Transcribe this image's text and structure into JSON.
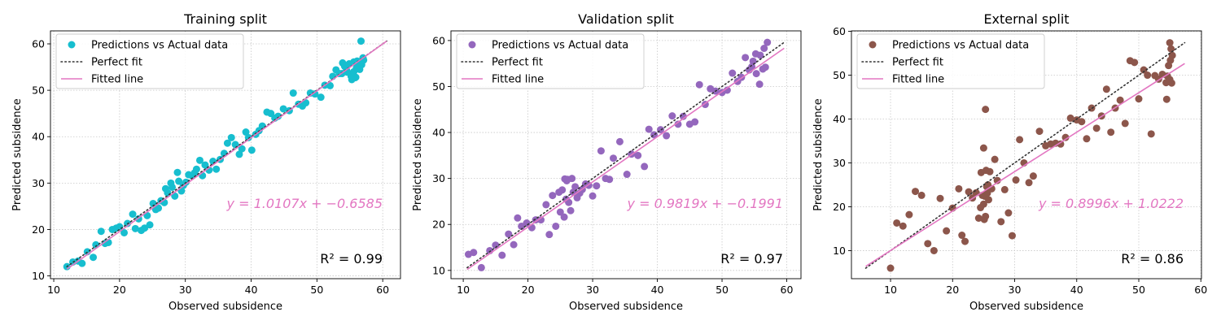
{
  "chart_data": [
    {
      "type": "scatter",
      "title": "Training split",
      "xlabel": "Observed subsidence",
      "ylabel": "Predicted subsidence",
      "xlim": [
        9.5,
        62.7
      ],
      "ylim": [
        9.4,
        62.8
      ],
      "xticks": [
        10,
        20,
        30,
        40,
        50,
        60
      ],
      "yticks": [
        10,
        20,
        30,
        40,
        50,
        60
      ],
      "grid": true,
      "legend_position": "top-left",
      "legend": [
        "Predictions vs Actual data",
        "Perfect fit",
        "Fitted line"
      ],
      "colors": {
        "points": "#17becf",
        "fit": "#e377c2",
        "perfect": "#333333"
      },
      "equation": "y = 1.0107x + −0.6585",
      "fit": {
        "slope": 1.0107,
        "intercept": -0.6585
      },
      "r2_label": "R² = 0.99",
      "r2": 0.99,
      "x": [
        12.0,
        12.9,
        13.7,
        14.3,
        15.1,
        16.0,
        16.4,
        17.2,
        17.8,
        18.3,
        18.9,
        19.5,
        20.0,
        20.7,
        21.2,
        22.0,
        22.4,
        22.9,
        23.3,
        23.8,
        24.2,
        24.6,
        25.1,
        25.5,
        25.9,
        26.3,
        26.8,
        27.0,
        27.3,
        27.8,
        28.0,
        28.4,
        28.8,
        29.0,
        29.4,
        29.7,
        30.1,
        30.5,
        31.0,
        31.4,
        31.7,
        32.2,
        32.6,
        33.0,
        33.6,
        34.2,
        34.7,
        35.3,
        35.9,
        36.4,
        37.0,
        37.6,
        38.2,
        38.6,
        39.2,
        39.6,
        40.1,
        40.7,
        41.2,
        41.7,
        42.4,
        43.0,
        43.6,
        44.1,
        44.9,
        45.8,
        46.4,
        47.2,
        47.8,
        48.3,
        49.0,
        49.7,
        50.6,
        51.2,
        52.0,
        52.4,
        52.9,
        53.4,
        53.8,
        54.2,
        54.5,
        54.9,
        55.2,
        55.6,
        55.9,
        56.1,
        56.3,
        56.5,
        56.8,
        57.1,
        56.4,
        55.8,
        55.3,
        54.6,
        53.9,
        56.7,
        57.0,
        56.2,
        55.6,
        56.0
      ],
      "y": [
        12.0,
        13.0,
        13.2,
        12.7,
        15.2,
        14.0,
        16.7,
        19.6,
        17.0,
        17.2,
        20.0,
        20.3,
        20.6,
        19.3,
        21.3,
        23.3,
        20.2,
        22.3,
        19.8,
        20.3,
        23.0,
        21.0,
        25.6,
        24.3,
        24.6,
        26.2,
        25.8,
        28.8,
        27.9,
        30.0,
        29.1,
        27.2,
        32.3,
        30.4,
        28.3,
        29.5,
        30.2,
        31.8,
        31.6,
        32.2,
        33.0,
        34.9,
        31.6,
        33.9,
        32.8,
        34.7,
        33.0,
        35.1,
        36.4,
        38.6,
        39.8,
        38.3,
        36.2,
        37.4,
        41.0,
        39.8,
        37.1,
        40.5,
        41.3,
        42.3,
        45.3,
        45.0,
        44.0,
        44.4,
        46.0,
        45.6,
        49.4,
        47.0,
        46.6,
        47.3,
        49.4,
        49.2,
        48.5,
        51.1,
        51.0,
        53.0,
        54.4,
        53.6,
        53.6,
        55.2,
        54.3,
        55.7,
        53.0,
        54.0,
        52.8,
        56.3,
        55.0,
        54.5,
        55.5,
        56.5,
        55.3,
        52.7,
        52.3,
        53.9,
        55.9,
        60.6,
        57.0,
        56.0,
        56.1,
        54.8
      ]
    },
    {
      "type": "scatter",
      "title": "Validation split",
      "xlabel": "Observed subsidence",
      "ylabel": "Predicted subsidence",
      "xlim": [
        8.1,
        62.2
      ],
      "ylim": [
        8.2,
        62.1
      ],
      "xticks": [
        10,
        20,
        30,
        40,
        50,
        60
      ],
      "yticks": [
        10,
        20,
        30,
        40,
        50,
        60
      ],
      "grid": true,
      "legend_position": "top-left",
      "legend": [
        "Predictions vs Actual data",
        "Perfect fit",
        "Fitted line"
      ],
      "colors": {
        "points": "#9467bd",
        "fit": "#e377c2",
        "perfect": "#333333"
      },
      "equation": "y = 0.9819x + −0.1991",
      "fit": {
        "slope": 0.9819,
        "intercept": -0.1991
      },
      "r2_label": "R² = 0.97",
      "r2": 0.97,
      "x": [
        10.8,
        11.6,
        12.8,
        14.1,
        15.0,
        16.0,
        17.0,
        17.8,
        18.4,
        19.0,
        19.8,
        20.6,
        21.2,
        22.0,
        22.8,
        23.3,
        23.8,
        24.3,
        24.8,
        25.0,
        25.3,
        25.6,
        25.9,
        26.1,
        26.3,
        26.6,
        26.8,
        27.0,
        27.3,
        27.6,
        28.0,
        28.4,
        28.9,
        29.4,
        30.0,
        30.6,
        31.3,
        32.0,
        32.6,
        33.2,
        34.2,
        35.3,
        36.0,
        37.0,
        38.0,
        38.7,
        39.5,
        40.5,
        41.4,
        42.3,
        43.2,
        44.0,
        45.0,
        45.8,
        46.5,
        47.4,
        48.2,
        49.0,
        50.0,
        50.8,
        51.6,
        52.4,
        53.0,
        53.6,
        54.2,
        54.8,
        55.3,
        55.8,
        56.3,
        56.7,
        57.0,
        56.5,
        55.9,
        55.2,
        54.6,
        26.0,
        25.7
      ],
      "y": [
        13.5,
        13.9,
        10.6,
        14.3,
        15.5,
        13.3,
        17.9,
        15.6,
        21.4,
        19.6,
        20.3,
        19.3,
        21.0,
        21.0,
        24.3,
        17.8,
        26.3,
        19.6,
        27.0,
        22.7,
        27.5,
        21.6,
        25.5,
        29.8,
        24.8,
        23.0,
        30.0,
        27.0,
        28.2,
        25.8,
        26.8,
        27.6,
        28.8,
        28.5,
        26.2,
        28.4,
        36.0,
        30.0,
        29.8,
        34.4,
        38.0,
        30.9,
        35.3,
        35.0,
        32.6,
        40.7,
        39.5,
        40.6,
        39.3,
        43.6,
        41.8,
        43.5,
        41.8,
        42.3,
        50.4,
        46.1,
        49.5,
        49.0,
        48.7,
        49.2,
        52.9,
        51.1,
        52.0,
        56.3,
        53.6,
        55.5,
        52.8,
        50.5,
        53.8,
        54.2,
        59.6,
        58.3,
        56.8,
        57.1,
        54.3,
        29.5,
        29.9
      ]
    },
    {
      "type": "scatter",
      "title": "External split",
      "xlabel": "Observed subsidence",
      "ylabel": "Predicted subsidence",
      "xlim": [
        3.7,
        60.1
      ],
      "ylim": [
        3.6,
        60.1
      ],
      "xticks": [
        10,
        20,
        30,
        40,
        50,
        60
      ],
      "yticks": [
        10,
        20,
        30,
        40,
        50,
        60
      ],
      "grid": true,
      "legend_position": "top-left",
      "legend": [
        "Predictions vs Actual data",
        "Perfect fit",
        "Fitted line"
      ],
      "colors": {
        "points": "#8c564b",
        "fit": "#e377c2",
        "perfect": "#333333"
      },
      "equation": "y = 0.8996x + 1.0222",
      "fit": {
        "slope": 0.8996,
        "intercept": 1.0222
      },
      "r2_label": "R² = 0.86",
      "r2": 0.86,
      "x": [
        10.0,
        11.0,
        12.0,
        13.0,
        14.0,
        15.0,
        16.0,
        17.0,
        18.0,
        19.0,
        20.0,
        21.0,
        21.5,
        22.0,
        22.6,
        23.2,
        23.8,
        24.2,
        24.5,
        24.8,
        25.0,
        25.1,
        25.2,
        25.3,
        25.4,
        25.5,
        25.6,
        25.7,
        25.8,
        26.0,
        26.3,
        26.8,
        27.2,
        27.8,
        28.4,
        29.0,
        29.6,
        30.2,
        30.8,
        31.5,
        32.3,
        33.0,
        34.0,
        35.0,
        35.8,
        36.6,
        37.4,
        38.2,
        39.0,
        40.0,
        40.8,
        41.6,
        42.4,
        43.2,
        44.0,
        44.8,
        45.5,
        46.2,
        47.0,
        47.8,
        48.6,
        49.3,
        50.0,
        50.8,
        51.4,
        52.0,
        52.6,
        53.2,
        53.8,
        54.4,
        55.0,
        55.2,
        55.4,
        55.1,
        54.8,
        54.6,
        55.0,
        55.3,
        54.5,
        25.0,
        24.6,
        25.3
      ],
      "y": [
        6.0,
        16.3,
        15.6,
        18.2,
        23.5,
        22.6,
        11.6,
        10.0,
        21.9,
        14.5,
        19.7,
        24.1,
        13.5,
        12.1,
        23.4,
        22.0,
        23.2,
        17.4,
        19.8,
        22.6,
        20.6,
        17.1,
        22.4,
        17.8,
        28.3,
        24.6,
        23.1,
        25.0,
        21.6,
        28.0,
        24.1,
        30.8,
        26.0,
        16.6,
        23.9,
        18.6,
        13.4,
        26.1,
        35.3,
        30.0,
        25.5,
        27.0,
        37.2,
        33.9,
        34.3,
        34.5,
        34.3,
        35.8,
        40.2,
        39.8,
        39.4,
        35.5,
        42.5,
        37.9,
        40.7,
        46.8,
        37.0,
        42.5,
        44.3,
        39.0,
        53.3,
        52.9,
        44.6,
        51.2,
        50.0,
        36.6,
        49.9,
        49.1,
        50.2,
        48.3,
        57.4,
        56.0,
        54.5,
        53.4,
        52.2,
        49.8,
        49.0,
        48.2,
        44.5,
        33.4,
        27.8,
        42.2
      ]
    }
  ]
}
